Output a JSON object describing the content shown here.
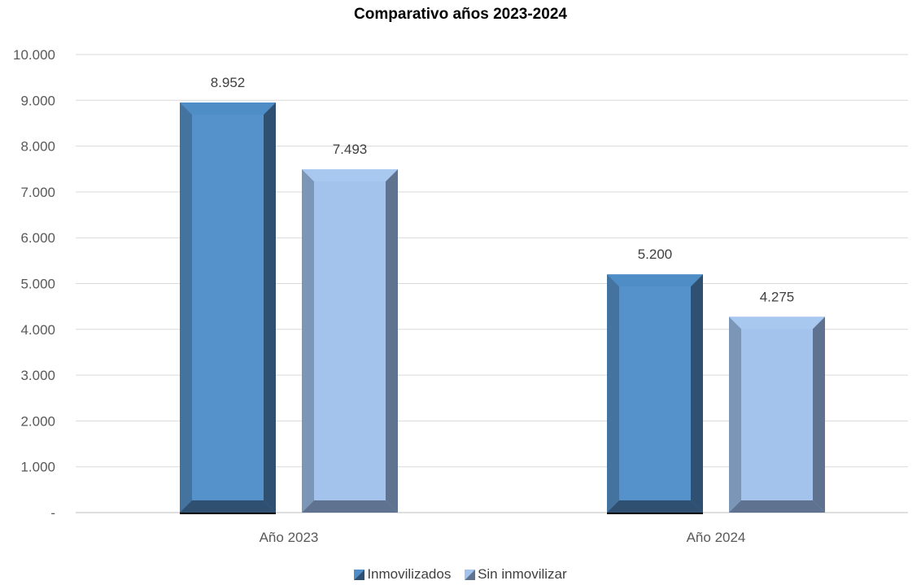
{
  "chart_data": {
    "type": "bar",
    "title": "Comparativo años 2023-2024",
    "categories": [
      "Año 2023",
      "Año 2024"
    ],
    "series": [
      {
        "name": "Inmovilizados",
        "values": [
          8952,
          5200
        ],
        "labels": [
          "8.952",
          "5.200"
        ],
        "color": "#4f8dc6"
      },
      {
        "name": "Sin inmovilizar",
        "values": [
          7493,
          4275
        ],
        "labels": [
          "7.493",
          "4.275"
        ],
        "color": "#a3c2ec"
      }
    ],
    "ylim": [
      0,
      10000
    ],
    "yticks": [
      0,
      1000,
      2000,
      3000,
      4000,
      5000,
      6000,
      7000,
      8000,
      9000,
      10000
    ],
    "ytick_labels": [
      "-",
      "1.000",
      "2.000",
      "3.000",
      "4.000",
      "5.000",
      "6.000",
      "7.000",
      "8.000",
      "9.000",
      "10.000"
    ],
    "grid": true,
    "legend_position": "bottom",
    "style": "3d-beveled bars"
  }
}
